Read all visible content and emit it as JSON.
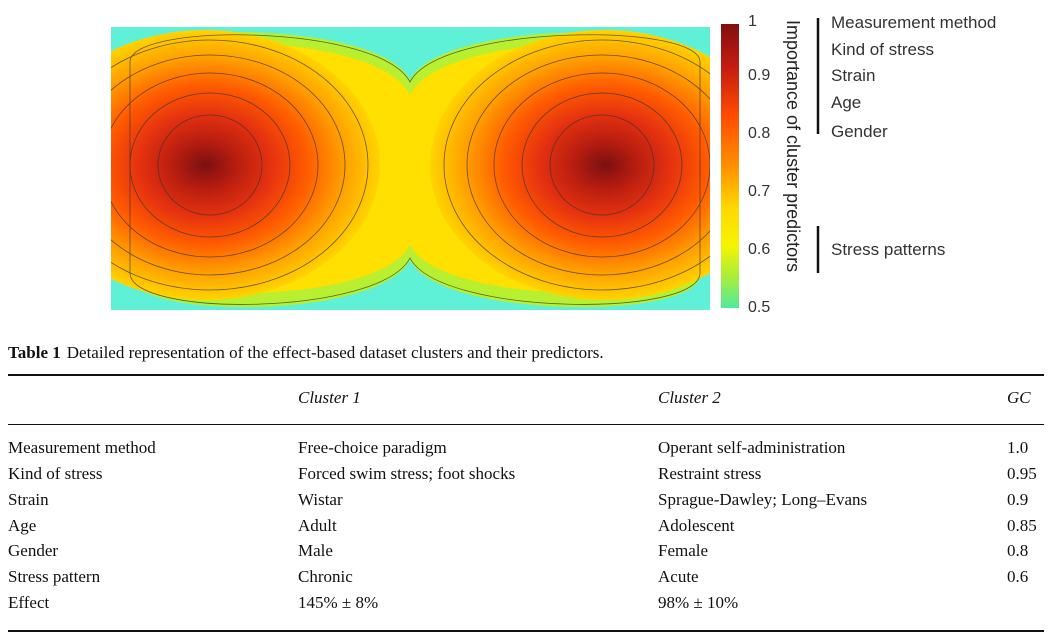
{
  "figure": {
    "colorbar": {
      "title": "Importance of cluster predictors",
      "ticks": [
        "1",
        "0.9",
        "0.8",
        "0.7",
        "0.6",
        "0.5"
      ],
      "stops": [
        "#801010",
        "#cc2010",
        "#ff4a00",
        "#ff9000",
        "#ffd800",
        "#f6f400",
        "#a0ee40",
        "#50eaa0"
      ]
    },
    "predictor_groups": [
      {
        "labels": [
          "Measurement method",
          "Kind of stress",
          "Strain",
          "Age",
          "Gender"
        ]
      },
      {
        "labels": [
          "Stress patterns"
        ]
      }
    ],
    "heatmap_colors": {
      "background": "#5ff0d8",
      "outer": "#a8ef3a",
      "mid": "#ffdf00",
      "peak": "#7a1010"
    }
  },
  "caption": {
    "label": "Table 1",
    "text": "Detailed representation of the effect-based dataset clusters and their predictors."
  },
  "table": {
    "headers": [
      "",
      "Cluster 1",
      "Cluster 2",
      "GC"
    ],
    "rows": [
      [
        "Measurement method",
        "Free-choice paradigm",
        "Operant self-administration",
        "1.0"
      ],
      [
        "Kind of stress",
        "Forced swim stress; foot shocks",
        "Restraint stress",
        "0.95"
      ],
      [
        "Strain",
        "Wistar",
        "Sprague-Dawley; Long–Evans",
        "0.9"
      ],
      [
        "Age",
        "Adult",
        "Adolescent",
        "0.85"
      ],
      [
        "Gender",
        "Male",
        "Female",
        "0.8"
      ],
      [
        "Stress pattern",
        "Chronic",
        "Acute",
        "0.6"
      ],
      [
        "Effect",
        "145% ± 8%",
        "98% ± 10%",
        ""
      ]
    ]
  }
}
